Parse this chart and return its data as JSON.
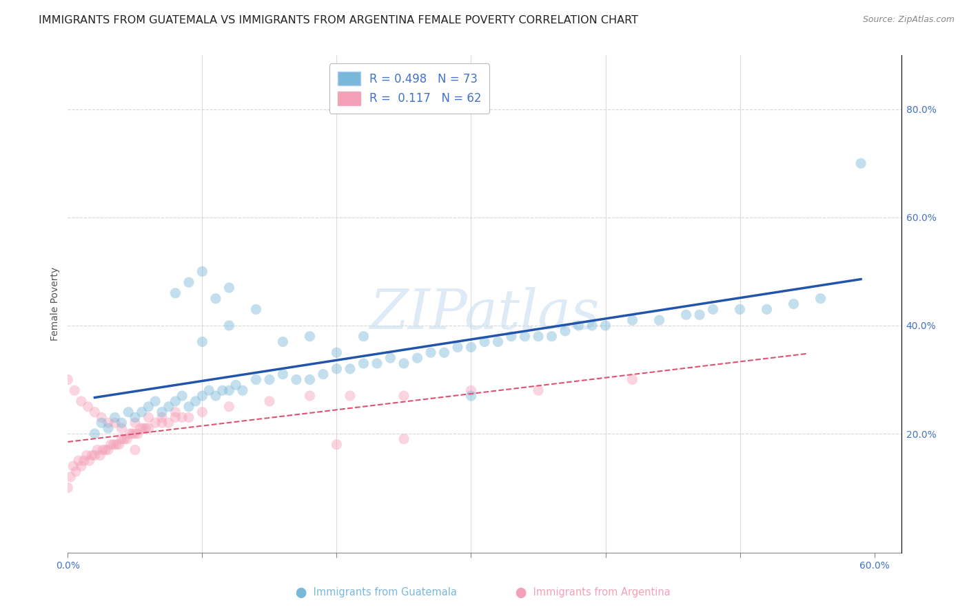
{
  "title": "IMMIGRANTS FROM GUATEMALA VS IMMIGRANTS FROM ARGENTINA FEMALE POVERTY CORRELATION CHART",
  "source": "Source: ZipAtlas.com",
  "ylabel": "Female Poverty",
  "y_ticks": [
    0.2,
    0.4,
    0.6,
    0.8
  ],
  "y_tick_labels": [
    "20.0%",
    "40.0%",
    "60.0%",
    "80.0%"
  ],
  "xlim": [
    0.0,
    0.62
  ],
  "ylim": [
    -0.02,
    0.9
  ],
  "watermark": "ZIPatlas",
  "legend_guatemala": "R = 0.498   N = 73",
  "legend_argentina": "R =  0.117   N = 62",
  "series_guatemala": {
    "color": "#7ab8d9",
    "line_color": "#2255aa",
    "x": [
      0.02,
      0.025,
      0.03,
      0.035,
      0.04,
      0.045,
      0.05,
      0.055,
      0.06,
      0.065,
      0.07,
      0.075,
      0.08,
      0.085,
      0.09,
      0.095,
      0.1,
      0.105,
      0.11,
      0.115,
      0.12,
      0.125,
      0.13,
      0.14,
      0.15,
      0.16,
      0.17,
      0.18,
      0.19,
      0.2,
      0.21,
      0.22,
      0.23,
      0.24,
      0.25,
      0.26,
      0.27,
      0.28,
      0.29,
      0.3,
      0.31,
      0.32,
      0.33,
      0.34,
      0.35,
      0.36,
      0.37,
      0.38,
      0.39,
      0.4,
      0.42,
      0.44,
      0.46,
      0.48,
      0.5,
      0.52,
      0.54,
      0.56,
      0.1,
      0.12,
      0.14,
      0.16,
      0.18,
      0.2,
      0.22,
      0.08,
      0.09,
      0.1,
      0.11,
      0.12,
      0.47,
      0.59,
      0.3
    ],
    "y": [
      0.2,
      0.22,
      0.21,
      0.23,
      0.22,
      0.24,
      0.23,
      0.24,
      0.25,
      0.26,
      0.24,
      0.25,
      0.26,
      0.27,
      0.25,
      0.26,
      0.27,
      0.28,
      0.27,
      0.28,
      0.28,
      0.29,
      0.28,
      0.3,
      0.3,
      0.31,
      0.3,
      0.3,
      0.31,
      0.32,
      0.32,
      0.33,
      0.33,
      0.34,
      0.33,
      0.34,
      0.35,
      0.35,
      0.36,
      0.36,
      0.37,
      0.37,
      0.38,
      0.38,
      0.38,
      0.38,
      0.39,
      0.4,
      0.4,
      0.4,
      0.41,
      0.41,
      0.42,
      0.43,
      0.43,
      0.43,
      0.44,
      0.45,
      0.37,
      0.4,
      0.43,
      0.37,
      0.38,
      0.35,
      0.38,
      0.46,
      0.48,
      0.5,
      0.45,
      0.47,
      0.42,
      0.7,
      0.27
    ]
  },
  "series_argentina": {
    "color": "#f4a0b8",
    "line_color": "#e05070",
    "x": [
      0.0,
      0.002,
      0.004,
      0.006,
      0.008,
      0.01,
      0.012,
      0.014,
      0.016,
      0.018,
      0.02,
      0.022,
      0.024,
      0.026,
      0.028,
      0.03,
      0.032,
      0.034,
      0.036,
      0.038,
      0.04,
      0.042,
      0.044,
      0.046,
      0.048,
      0.05,
      0.052,
      0.054,
      0.056,
      0.058,
      0.06,
      0.065,
      0.07,
      0.075,
      0.08,
      0.085,
      0.09,
      0.0,
      0.005,
      0.01,
      0.015,
      0.02,
      0.025,
      0.03,
      0.035,
      0.04,
      0.05,
      0.06,
      0.07,
      0.08,
      0.1,
      0.12,
      0.15,
      0.18,
      0.21,
      0.25,
      0.3,
      0.35,
      0.2,
      0.25,
      0.05,
      0.42
    ],
    "y": [
      0.1,
      0.12,
      0.14,
      0.13,
      0.15,
      0.14,
      0.15,
      0.16,
      0.15,
      0.16,
      0.16,
      0.17,
      0.16,
      0.17,
      0.17,
      0.17,
      0.18,
      0.18,
      0.18,
      0.18,
      0.19,
      0.19,
      0.19,
      0.2,
      0.2,
      0.2,
      0.2,
      0.21,
      0.21,
      0.21,
      0.21,
      0.22,
      0.22,
      0.22,
      0.23,
      0.23,
      0.23,
      0.3,
      0.28,
      0.26,
      0.25,
      0.24,
      0.23,
      0.22,
      0.22,
      0.21,
      0.22,
      0.23,
      0.23,
      0.24,
      0.24,
      0.25,
      0.26,
      0.27,
      0.27,
      0.27,
      0.28,
      0.28,
      0.18,
      0.19,
      0.17,
      0.3
    ]
  },
  "background_color": "#ffffff",
  "grid_color": "#cccccc",
  "title_fontsize": 11.5,
  "axis_label_fontsize": 10,
  "tick_fontsize": 10,
  "scatter_alpha": 0.45,
  "scatter_size": 120
}
